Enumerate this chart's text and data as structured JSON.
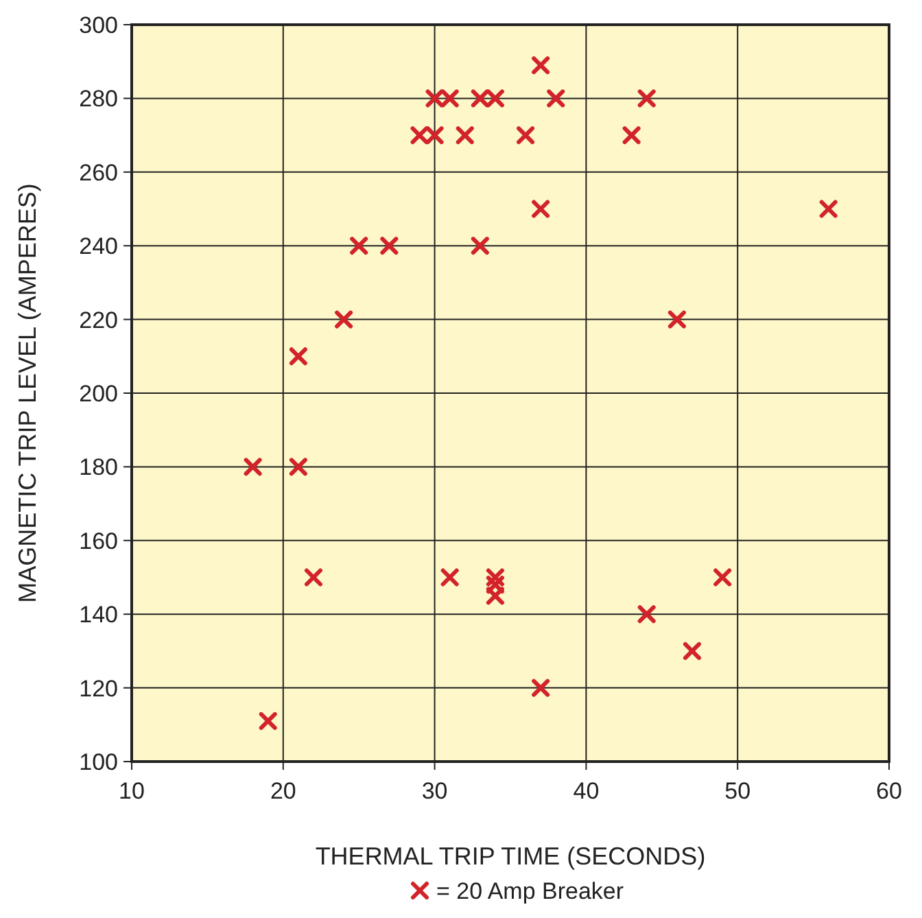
{
  "chart_data": {
    "type": "scatter",
    "xlabel": "THERMAL TRIP TIME (SECONDS)",
    "ylabel": "MAGNETIC TRIP LEVEL (AMPERES)",
    "xlim": [
      10,
      60
    ],
    "xticks": [
      10,
      20,
      30,
      40,
      50,
      60
    ],
    "ylim": [
      100,
      300
    ],
    "yticks": [
      100,
      120,
      140,
      160,
      180,
      200,
      220,
      240,
      260,
      280,
      300
    ],
    "grid": true,
    "legend": "bottom",
    "marker": "cross",
    "series": [
      {
        "name": "= 20 Amp Breaker",
        "color": "#d2232a",
        "x": [
          37,
          30,
          31,
          33,
          34,
          38,
          44,
          29,
          30,
          32,
          36,
          43,
          37,
          56,
          25,
          27,
          33,
          24,
          46,
          21,
          18,
          21,
          22,
          31,
          34,
          34,
          34,
          49,
          44,
          47,
          37,
          19
        ],
        "values": [
          289,
          280,
          280,
          280,
          280,
          280,
          280,
          270,
          270,
          270,
          270,
          270,
          250,
          250,
          240,
          240,
          240,
          220,
          220,
          210,
          180,
          180,
          150,
          150,
          150,
          148,
          145,
          150,
          140,
          130,
          120,
          111
        ]
      }
    ]
  }
}
